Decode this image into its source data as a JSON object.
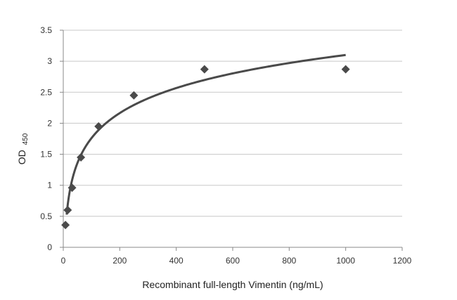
{
  "chart_data": {
    "type": "scatter",
    "title": "",
    "xlabel": "Recombinant full-length Vimentin (ng/mL)",
    "ylabel": "OD",
    "ylabel_subscript": "450",
    "xlim": [
      0,
      1200
    ],
    "ylim": [
      0,
      3.5
    ],
    "xticks": [
      "0",
      "200",
      "400",
      "600",
      "800",
      "1000",
      "1200"
    ],
    "yticks": [
      "0",
      "0.5",
      "1",
      "1.5",
      "2",
      "2.5",
      "3",
      "3.5"
    ],
    "grid": "horizontal",
    "legend": "none",
    "marker": "diamond",
    "trendline": "logarithmic",
    "color": "#4a4a4a",
    "series": [
      {
        "x": [
          7.8,
          15.6,
          31.25,
          62.5,
          125,
          250,
          500,
          1000
        ],
        "y": [
          0.36,
          0.6,
          0.96,
          1.45,
          1.95,
          2.45,
          2.87,
          2.87
        ]
      }
    ]
  }
}
